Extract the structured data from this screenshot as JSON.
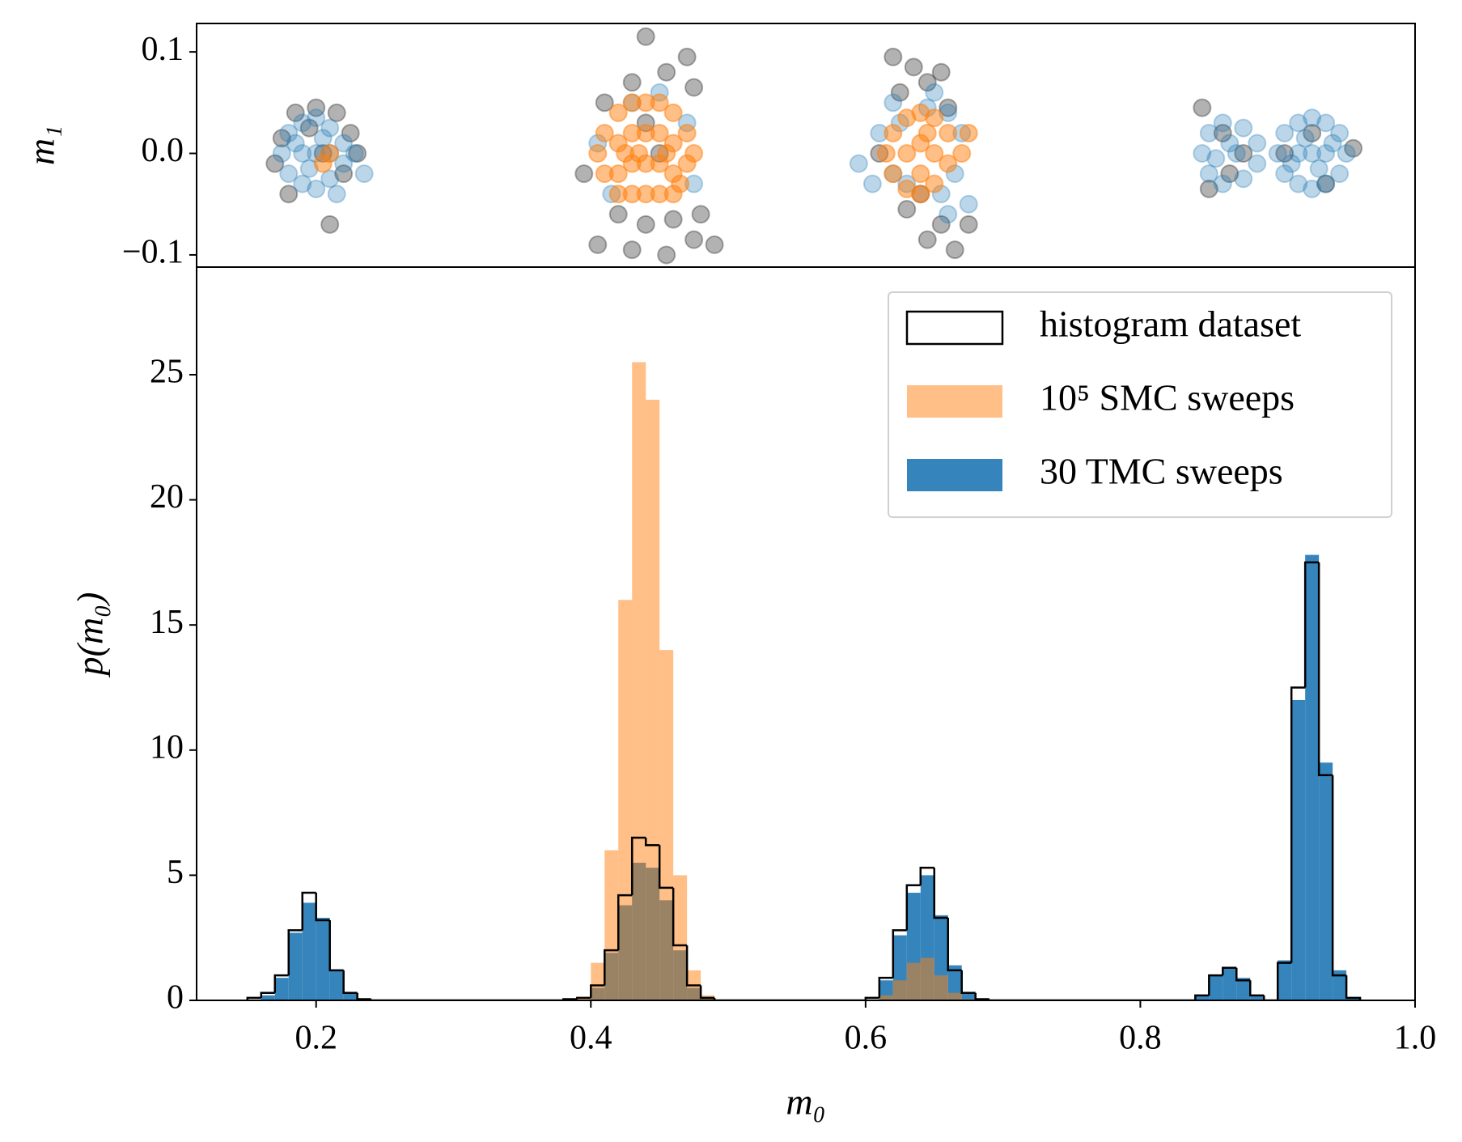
{
  "chart_data": [
    {
      "type": "scatter",
      "y_label": "m₁",
      "xlim": [
        0.113,
        1.0
      ],
      "ylim": [
        -0.112,
        0.128
      ],
      "yticks": [
        0.1,
        {
          "value": 0,
          "label": "0.0"
        },
        {
          "value": -0.1,
          "label": "−0.1"
        }
      ],
      "series": [
        {
          "color": "#000000",
          "alpha": 0.3,
          "x": [
            0.175,
            0.185,
            0.2,
            0.215,
            0.225,
            0.23,
            0.18,
            0.21,
            0.195,
            0.22,
            0.17,
            0.205,
            0.44,
            0.47,
            0.455,
            0.43,
            0.475,
            0.41,
            0.395,
            0.42,
            0.44,
            0.46,
            0.405,
            0.43,
            0.455,
            0.475,
            0.49,
            0.48,
            0.45,
            0.44,
            0.62,
            0.635,
            0.655,
            0.645,
            0.625,
            0.66,
            0.61,
            0.63,
            0.655,
            0.645,
            0.665,
            0.675,
            0.64,
            0.845,
            0.85,
            0.86,
            0.875,
            0.865,
            0.925,
            0.935,
            0.955,
            0.905
          ],
          "y": [
            0.015,
            0.04,
            0.045,
            0.04,
            0.02,
            0.0,
            -0.04,
            -0.07,
            0.025,
            -0.02,
            -0.01,
            0.0,
            0.115,
            0.095,
            0.08,
            0.07,
            0.065,
            0.05,
            -0.02,
            -0.06,
            -0.07,
            -0.065,
            -0.09,
            -0.095,
            -0.1,
            -0.085,
            -0.09,
            -0.06,
            0.0,
            0.03,
            0.095,
            0.085,
            0.08,
            0.07,
            0.06,
            0.045,
            0.0,
            -0.055,
            -0.07,
            -0.085,
            -0.095,
            -0.07,
            -0.04,
            0.045,
            -0.035,
            0.02,
            0.0,
            -0.02,
            0.02,
            -0.03,
            0.005,
            0.0
          ]
        },
        {
          "color": "#1f77b4",
          "alpha": 0.3,
          "x": [
            0.175,
            0.18,
            0.18,
            0.19,
            0.19,
            0.2,
            0.2,
            0.2,
            0.21,
            0.21,
            0.22,
            0.22,
            0.19,
            0.21,
            0.215,
            0.228,
            0.235,
            0.185,
            0.195,
            0.205,
            0.405,
            0.47,
            0.45,
            0.43,
            0.475,
            0.415,
            0.595,
            0.605,
            0.61,
            0.62,
            0.65,
            0.66,
            0.67,
            0.665,
            0.655,
            0.63,
            0.675,
            0.62,
            0.645,
            0.66,
            0.625,
            0.845,
            0.85,
            0.85,
            0.86,
            0.86,
            0.87,
            0.875,
            0.875,
            0.885,
            0.885,
            0.865,
            0.855,
            0.9,
            0.905,
            0.905,
            0.915,
            0.915,
            0.925,
            0.925,
            0.925,
            0.935,
            0.935,
            0.945,
            0.945,
            0.95,
            0.915,
            0.935,
            0.92,
            0.93,
            0.94,
            0.91
          ],
          "y": [
            0.0,
            0.02,
            -0.02,
            0.03,
            -0.03,
            0.035,
            0.0,
            -0.035,
            0.025,
            -0.025,
            0.01,
            -0.01,
            0.0,
            0.0,
            -0.04,
            0.0,
            -0.02,
            0.01,
            -0.015,
            0.015,
            0.01,
            0.03,
            0.06,
            0.05,
            -0.03,
            -0.04,
            -0.01,
            -0.03,
            0.02,
            0.05,
            0.06,
            0.04,
            0.02,
            -0.02,
            -0.04,
            -0.03,
            -0.05,
            -0.02,
            0.045,
            -0.06,
            0.03,
            0.0,
            0.02,
            -0.02,
            0.03,
            -0.03,
            0.0,
            0.025,
            -0.025,
            0.01,
            -0.01,
            0.01,
            -0.005,
            0.0,
            0.02,
            -0.02,
            0.03,
            -0.03,
            0.035,
            0.0,
            -0.035,
            0.03,
            -0.03,
            0.02,
            -0.02,
            0.0,
            0.0,
            0.0,
            0.015,
            -0.015,
            0.01,
            -0.01
          ]
        },
        {
          "color": "#ff7f0e",
          "alpha": 0.5,
          "x": [
            0.405,
            0.41,
            0.41,
            0.42,
            0.42,
            0.42,
            0.42,
            0.43,
            0.43,
            0.43,
            0.43,
            0.44,
            0.44,
            0.44,
            0.44,
            0.45,
            0.45,
            0.45,
            0.45,
            0.46,
            0.46,
            0.46,
            0.46,
            0.47,
            0.47,
            0.475,
            0.435,
            0.455,
            0.425,
            0.465,
            0.615,
            0.62,
            0.62,
            0.63,
            0.63,
            0.63,
            0.64,
            0.64,
            0.64,
            0.64,
            0.65,
            0.65,
            0.65,
            0.66,
            0.66,
            0.67,
            0.675,
            0.645,
            0.21,
            0.205
          ],
          "y": [
            0.0,
            0.02,
            -0.02,
            0.04,
            0.01,
            -0.02,
            -0.04,
            0.05,
            0.02,
            -0.01,
            -0.04,
            0.05,
            0.02,
            -0.01,
            -0.04,
            0.05,
            0.02,
            -0.01,
            -0.04,
            0.04,
            0.01,
            -0.02,
            -0.04,
            0.02,
            -0.01,
            0.0,
            0.0,
            0.0,
            0.0,
            -0.03,
            0.0,
            0.02,
            -0.02,
            0.035,
            0.0,
            -0.035,
            0.04,
            0.01,
            -0.02,
            -0.04,
            0.035,
            0.0,
            -0.03,
            0.02,
            -0.01,
            0.0,
            0.02,
            0.02,
            0.0,
            -0.01
          ]
        }
      ]
    },
    {
      "type": "histogram",
      "x_label": "m₀",
      "y_label": "p(m₀)",
      "xlim": [
        0.113,
        1.0
      ],
      "ylim": [
        0,
        29.3
      ],
      "xticks": [
        0.2,
        0.4,
        0.6,
        0.8,
        {
          "value": 1,
          "label": "1.0"
        }
      ],
      "yticks": [
        0,
        5,
        10,
        15,
        20,
        25
      ],
      "legend": "upper right",
      "bins": [
        0.15,
        0.16,
        0.17,
        0.18,
        0.19,
        0.2,
        0.21,
        0.22,
        0.23,
        0.24,
        0.25,
        0.26,
        0.27,
        0.28,
        0.29,
        0.3,
        0.31,
        0.32,
        0.33,
        0.34,
        0.35,
        0.36,
        0.37,
        0.38,
        0.39,
        0.4,
        0.41,
        0.42,
        0.43,
        0.44,
        0.45,
        0.46,
        0.47,
        0.48,
        0.49,
        0.5,
        0.51,
        0.52,
        0.53,
        0.54,
        0.55,
        0.56,
        0.57,
        0.58,
        0.59,
        0.6,
        0.61,
        0.62,
        0.63,
        0.64,
        0.65,
        0.66,
        0.67,
        0.68,
        0.69,
        0.7,
        0.71,
        0.72,
        0.73,
        0.74,
        0.75,
        0.76,
        0.77,
        0.78,
        0.79,
        0.8,
        0.81,
        0.82,
        0.83,
        0.84,
        0.85,
        0.86,
        0.87,
        0.88,
        0.89,
        0.9,
        0.91,
        0.92,
        0.93,
        0.94,
        0.95,
        0.96
      ],
      "series": [
        {
          "name": "histogram dataset",
          "color": "#000000",
          "style": "step",
          "values": [
            0.1,
            0.3,
            1.0,
            2.8,
            4.3,
            3.2,
            1.2,
            0.3,
            0.05,
            0,
            0,
            0,
            0,
            0,
            0,
            0,
            0,
            0,
            0,
            0,
            0,
            0,
            0,
            0.05,
            0.1,
            0.6,
            2.0,
            4.2,
            6.5,
            6.2,
            4.5,
            2.2,
            0.6,
            0.1,
            0,
            0,
            0,
            0,
            0,
            0,
            0,
            0,
            0,
            0,
            0,
            0.1,
            0.9,
            2.8,
            4.6,
            5.3,
            3.3,
            1.2,
            0.3,
            0.05,
            0,
            0,
            0,
            0,
            0,
            0,
            0,
            0,
            0,
            0,
            0,
            0,
            0,
            0,
            0,
            0.2,
            1.0,
            1.3,
            0.8,
            0.2,
            0,
            1.5,
            12.5,
            17.5,
            9.0,
            1.0,
            0.1
          ]
        },
        {
          "name": "10⁵ SMC sweeps",
          "color": "#ff7f0e",
          "alpha": 0.5,
          "style": "filled",
          "values": [
            0,
            0,
            0,
            0,
            0,
            0,
            0,
            0,
            0,
            0,
            0,
            0,
            0,
            0,
            0,
            0,
            0,
            0,
            0,
            0,
            0,
            0,
            0,
            0,
            0.1,
            1.5,
            6.0,
            16.0,
            25.5,
            24.0,
            14.0,
            5.0,
            1.2,
            0.2,
            0,
            0,
            0,
            0,
            0,
            0,
            0,
            0,
            0,
            0,
            0,
            0,
            0.2,
            0.8,
            1.5,
            1.7,
            1.0,
            0.3,
            0.05,
            0,
            0,
            0,
            0,
            0,
            0,
            0,
            0,
            0,
            0,
            0,
            0,
            0,
            0,
            0,
            0,
            0,
            0,
            0,
            0,
            0,
            0,
            0,
            0,
            0,
            0,
            0,
            0
          ]
        },
        {
          "name": "30 TMC sweeps",
          "color": "#1f77b4",
          "alpha": 0.9,
          "style": "filled",
          "values": [
            0,
            0.2,
            0.9,
            2.7,
            3.9,
            3.3,
            1.2,
            0.3,
            0,
            0,
            0,
            0,
            0,
            0,
            0,
            0,
            0,
            0,
            0,
            0,
            0,
            0,
            0,
            0,
            0,
            0.5,
            1.9,
            3.8,
            5.5,
            5.3,
            4.0,
            2.0,
            0.5,
            0.1,
            0,
            0,
            0,
            0,
            0,
            0,
            0,
            0,
            0,
            0,
            0,
            0,
            0.8,
            2.6,
            4.3,
            5.0,
            3.4,
            1.4,
            0.3,
            0,
            0,
            0,
            0,
            0,
            0,
            0,
            0,
            0,
            0,
            0,
            0,
            0,
            0,
            0,
            0,
            0.2,
            1.0,
            1.3,
            0.9,
            0.2,
            0,
            1.6,
            12.0,
            17.8,
            9.5,
            1.2,
            0.1
          ]
        }
      ]
    }
  ]
}
